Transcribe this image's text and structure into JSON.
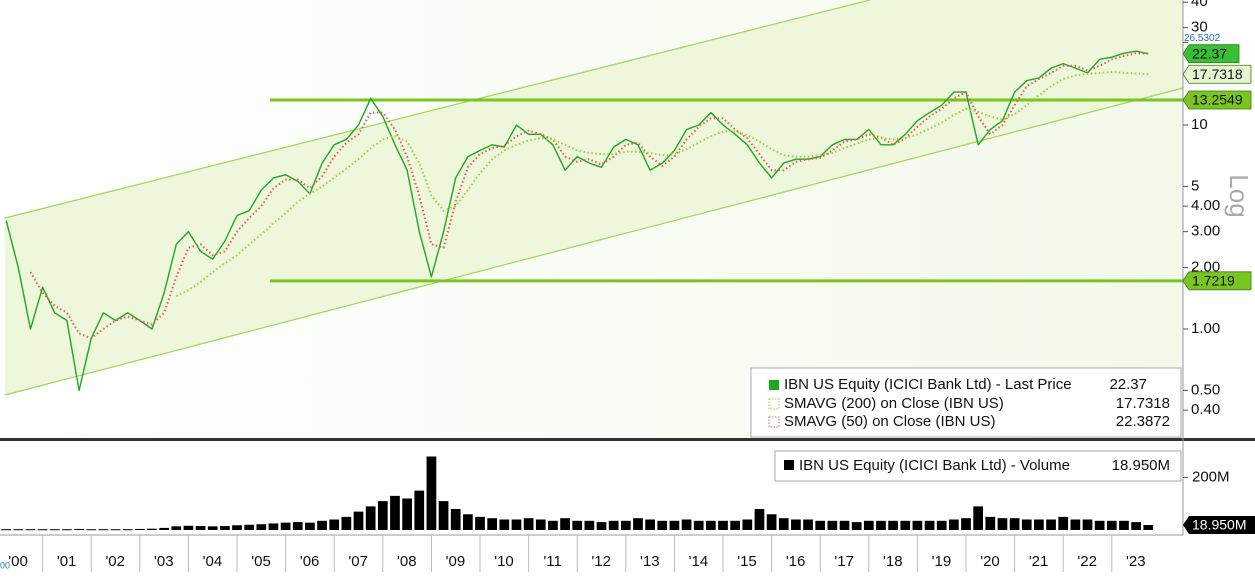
{
  "chart_data": [
    {
      "type": "line",
      "log": true,
      "axis_label": "Log",
      "xlim": [
        2000.123,
        2024.465
      ],
      "ylim": [
        0.292,
        41
      ],
      "yticks": [
        40,
        30,
        10,
        5,
        {
          "value": 4,
          "label": "4.00"
        },
        {
          "value": 3,
          "label": "3.00"
        },
        {
          "value": 2,
          "label": "2.00"
        },
        {
          "value": 1,
          "label": "1.00"
        },
        {
          "value": 0.5,
          "label": "0.50"
        },
        {
          "value": 0.4,
          "label": "0.40"
        }
      ],
      "hlines": [
        13.2549,
        1.7219
      ],
      "markers": [
        26.5302
      ],
      "x": [
        2000.25,
        2000.5,
        2000.75,
        2001,
        2001.25,
        2001.5,
        2001.75,
        2002,
        2002.25,
        2002.5,
        2002.75,
        2003,
        2003.25,
        2003.5,
        2003.75,
        2004,
        2004.25,
        2004.5,
        2004.75,
        2005,
        2005.25,
        2005.5,
        2005.75,
        2006,
        2006.25,
        2006.5,
        2006.75,
        2007,
        2007.25,
        2007.5,
        2007.75,
        2008,
        2008.25,
        2008.5,
        2008.75,
        2009,
        2009.25,
        2009.5,
        2009.75,
        2010,
        2010.25,
        2010.5,
        2010.75,
        2011,
        2011.25,
        2011.5,
        2011.75,
        2012,
        2012.25,
        2012.5,
        2012.75,
        2013,
        2013.25,
        2013.5,
        2013.75,
        2014,
        2014.25,
        2014.5,
        2014.75,
        2015,
        2015.25,
        2015.5,
        2015.75,
        2016,
        2016.25,
        2016.5,
        2016.75,
        2017,
        2017.25,
        2017.5,
        2017.75,
        2018,
        2018.25,
        2018.5,
        2018.75,
        2019,
        2019.25,
        2019.5,
        2019.75,
        2020,
        2020.25,
        2020.5,
        2020.75,
        2021,
        2021.25,
        2021.5,
        2021.75,
        2022,
        2022.25,
        2022.5,
        2022.75,
        2023,
        2023.25,
        2023.5,
        2023.75
      ],
      "series": [
        {
          "name": "IBN US Equity (ICICI Bank Ltd) - Last Price",
          "color": "#1fa81f",
          "values": [
            3.4,
            2.0,
            1.0,
            1.6,
            1.2,
            1.1,
            0.5,
            0.9,
            1.2,
            1.1,
            1.2,
            1.1,
            1.0,
            1.5,
            2.6,
            3.0,
            2.4,
            2.2,
            2.7,
            3.6,
            3.8,
            4.8,
            5.5,
            5.7,
            5.3,
            4.6,
            6.5,
            8.0,
            8.5,
            10.0,
            13.5,
            11,
            8,
            6,
            3.0,
            1.8,
            3.0,
            5.5,
            7.0,
            7.5,
            8.0,
            7.8,
            10.0,
            9.0,
            9.0,
            8.0,
            6.0,
            7.0,
            6.5,
            6.2,
            7.8,
            8.5,
            8.0,
            6.0,
            6.5,
            7.5,
            9.5,
            10.0,
            11.5,
            10.0,
            9.0,
            8.0,
            6.5,
            5.5,
            6.5,
            6.8,
            6.8,
            7.0,
            8.0,
            8.5,
            8.5,
            9.5,
            8.0,
            8.0,
            9.0,
            10.5,
            11.5,
            12.5,
            14.5,
            14.5,
            8.0,
            9.5,
            10.5,
            14.5,
            16.5,
            17,
            19,
            20,
            19,
            18,
            21,
            21.5,
            22.5,
            23,
            22.37
          ]
        },
        {
          "name": "SMAVG (50)  on Close (IBN US)",
          "color": "#e05a5a",
          "values": [
            null,
            null,
            1.9,
            1.5,
            1.3,
            1.2,
            0.95,
            0.9,
            1.0,
            1.1,
            1.15,
            1.1,
            1.05,
            1.2,
            1.8,
            2.5,
            2.6,
            2.3,
            2.4,
            3.0,
            3.5,
            4.0,
            4.9,
            5.4,
            5.4,
            4.9,
            5.6,
            7.0,
            8.2,
            9.0,
            11.5,
            11.5,
            9.5,
            7.0,
            4.5,
            2.6,
            2.5,
            4.2,
            6.2,
            7.2,
            7.7,
            7.9,
            8.8,
            9.4,
            9.0,
            8.5,
            7.0,
            6.6,
            6.8,
            6.4,
            7.0,
            8.0,
            8.2,
            7.0,
            6.3,
            7.0,
            8.5,
            9.8,
            10.8,
            10.8,
            9.5,
            8.6,
            7.2,
            6.0,
            6.0,
            6.6,
            6.8,
            6.9,
            7.5,
            8.3,
            8.5,
            9.0,
            8.7,
            8.0,
            8.6,
            9.8,
            11.0,
            12.0,
            13.5,
            14.5,
            11.0,
            9.0,
            10.0,
            12.5,
            15.5,
            16.8,
            18.0,
            19.5,
            19.5,
            18.5,
            19.5,
            21.0,
            21.8,
            22.5,
            22.3872
          ]
        },
        {
          "name": "SMAVG (200)  on Close (IBN US)",
          "color": "#9acd32",
          "values": [
            null,
            null,
            null,
            null,
            null,
            null,
            null,
            null,
            null,
            null,
            null,
            null,
            null,
            null,
            1.45,
            1.55,
            1.7,
            1.9,
            2.1,
            2.3,
            2.6,
            2.9,
            3.3,
            3.7,
            4.2,
            4.6,
            5.0,
            5.5,
            6.1,
            6.8,
            7.7,
            8.5,
            8.8,
            8.3,
            6.5,
            4.5,
            3.8,
            4.0,
            4.8,
            5.8,
            6.8,
            7.5,
            8.0,
            8.4,
            8.6,
            8.5,
            8.0,
            7.5,
            7.3,
            7.2,
            7.2,
            7.4,
            7.4,
            7.3,
            7.1,
            7.2,
            7.6,
            8.2,
            8.8,
            9.3,
            9.3,
            8.9,
            8.3,
            7.6,
            7.1,
            7.0,
            7.0,
            7.1,
            7.3,
            7.7,
            8.1,
            8.5,
            8.6,
            8.5,
            8.6,
            9.0,
            9.6,
            10.3,
            11.2,
            12.0,
            11.6,
            11.0,
            10.6,
            11.3,
            12.5,
            14.0,
            15.5,
            16.8,
            17.5,
            17.8,
            18.0,
            18.2,
            18.0,
            17.9,
            17.7318
          ]
        }
      ]
    },
    {
      "type": "bar",
      "corner_label": "00",
      "xlim": [
        2000.123,
        2024.465
      ],
      "ylim": [
        0,
        320
      ],
      "yticks": [
        {
          "value": 200,
          "label": "200M"
        }
      ],
      "xticks": [
        {
          "value": 2000,
          "label": "'00"
        },
        {
          "value": 2001,
          "label": "'01"
        },
        {
          "value": 2002,
          "label": "'02"
        },
        {
          "value": 2003,
          "label": "'03"
        },
        {
          "value": 2004,
          "label": "'04"
        },
        {
          "value": 2005,
          "label": "'05"
        },
        {
          "value": 2006,
          "label": "'06"
        },
        {
          "value": 2007,
          "label": "'07"
        },
        {
          "value": 2008,
          "label": "'08"
        },
        {
          "value": 2009,
          "label": "'09"
        },
        {
          "value": 2010,
          "label": "'10"
        },
        {
          "value": 2011,
          "label": "'11"
        },
        {
          "value": 2012,
          "label": "'12"
        },
        {
          "value": 2013,
          "label": "'13"
        },
        {
          "value": 2014,
          "label": "'14"
        },
        {
          "value": 2015,
          "label": "'15"
        },
        {
          "value": 2016,
          "label": "'16"
        },
        {
          "value": 2017,
          "label": "'17"
        },
        {
          "value": 2018,
          "label": "'18"
        },
        {
          "value": 2019,
          "label": "'19"
        },
        {
          "value": 2020,
          "label": "'20"
        },
        {
          "value": 2021,
          "label": "'21"
        },
        {
          "value": 2022,
          "label": "'22"
        },
        {
          "value": 2023,
          "label": "'23"
        }
      ],
      "x": [
        2000.25,
        2000.5,
        2000.75,
        2001,
        2001.25,
        2001.5,
        2001.75,
        2002,
        2002.25,
        2002.5,
        2002.75,
        2003,
        2003.25,
        2003.5,
        2003.75,
        2004,
        2004.25,
        2004.5,
        2004.75,
        2005,
        2005.25,
        2005.5,
        2005.75,
        2006,
        2006.25,
        2006.5,
        2006.75,
        2007,
        2007.25,
        2007.5,
        2007.75,
        2008,
        2008.25,
        2008.5,
        2008.75,
        2009,
        2009.25,
        2009.5,
        2009.75,
        2010,
        2010.25,
        2010.5,
        2010.75,
        2011,
        2011.25,
        2011.5,
        2011.75,
        2012,
        2012.25,
        2012.5,
        2012.75,
        2013,
        2013.25,
        2013.5,
        2013.75,
        2014,
        2014.25,
        2014.5,
        2014.75,
        2015,
        2015.25,
        2015.5,
        2015.75,
        2016,
        2016.25,
        2016.5,
        2016.75,
        2017,
        2017.25,
        2017.5,
        2017.75,
        2018,
        2018.25,
        2018.5,
        2018.75,
        2019,
        2019.25,
        2019.5,
        2019.75,
        2020,
        2020.25,
        2020.5,
        2020.75,
        2021,
        2021.25,
        2021.5,
        2021.75,
        2022,
        2022.25,
        2022.5,
        2022.75,
        2023,
        2023.25,
        2023.5,
        2023.75
      ],
      "series": [
        {
          "name": "IBN US Equity (ICICI Bank Ltd) - Volume",
          "color": "#000000",
          "value_label": "18.950M",
          "values": [
            3,
            3,
            3,
            3,
            3,
            3,
            4,
            3,
            3,
            3,
            3,
            4,
            5,
            8,
            14,
            16,
            15,
            14,
            15,
            18,
            20,
            22,
            25,
            28,
            30,
            28,
            35,
            40,
            50,
            70,
            90,
            110,
            130,
            120,
            150,
            280,
            110,
            80,
            60,
            50,
            45,
            40,
            40,
            45,
            40,
            35,
            45,
            35,
            35,
            30,
            35,
            35,
            45,
            40,
            35,
            35,
            40,
            35,
            35,
            35,
            35,
            40,
            80,
            60,
            45,
            40,
            40,
            35,
            35,
            35,
            30,
            35,
            35,
            35,
            35,
            35,
            35,
            35,
            40,
            45,
            90,
            50,
            45,
            45,
            40,
            40,
            40,
            50,
            40,
            40,
            35,
            35,
            35,
            30,
            18.95
          ]
        }
      ]
    }
  ]
}
